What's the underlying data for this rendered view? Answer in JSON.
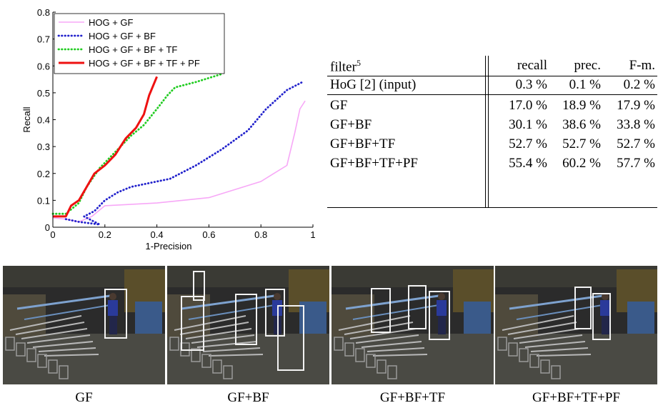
{
  "chart_data": {
    "type": "line",
    "xlabel": "1-Precision",
    "ylabel": "Recall",
    "xlim": [
      0,
      1
    ],
    "ylim": [
      0,
      0.8
    ],
    "xticks": [
      "0",
      "0.2",
      "0.4",
      "0.6",
      "0.8",
      "1"
    ],
    "yticks": [
      "0",
      "0.1",
      "0.2",
      "0.3",
      "0.4",
      "0.5",
      "0.6",
      "0.7",
      "0.8"
    ],
    "legend_position": "top-left",
    "series": [
      {
        "name": "HOG + GF",
        "color": "#f7a8f7",
        "style": "solid",
        "points": [
          [
            0.0,
            0.035
          ],
          [
            0.05,
            0.03
          ],
          [
            0.1,
            0.02
          ],
          [
            0.15,
            0.04
          ],
          [
            0.2,
            0.08
          ],
          [
            0.4,
            0.09
          ],
          [
            0.6,
            0.11
          ],
          [
            0.8,
            0.17
          ],
          [
            0.9,
            0.23
          ],
          [
            0.93,
            0.35
          ],
          [
            0.95,
            0.44
          ],
          [
            0.97,
            0.47
          ]
        ]
      },
      {
        "name": "HOG + GF + BF",
        "color": "#2222cc",
        "style": "dotted",
        "points": [
          [
            0.05,
            0.03
          ],
          [
            0.1,
            0.02
          ],
          [
            0.18,
            0.01
          ],
          [
            0.12,
            0.04
          ],
          [
            0.16,
            0.06
          ],
          [
            0.2,
            0.1
          ],
          [
            0.25,
            0.13
          ],
          [
            0.3,
            0.15
          ],
          [
            0.4,
            0.17
          ],
          [
            0.45,
            0.18
          ],
          [
            0.55,
            0.23
          ],
          [
            0.65,
            0.29
          ],
          [
            0.75,
            0.36
          ],
          [
            0.82,
            0.44
          ],
          [
            0.9,
            0.51
          ],
          [
            0.96,
            0.54
          ]
        ]
      },
      {
        "name": "HOG + GF + BF + TF",
        "color": "#22cc22",
        "style": "dotted",
        "points": [
          [
            0.0,
            0.05
          ],
          [
            0.05,
            0.05
          ],
          [
            0.1,
            0.09
          ],
          [
            0.13,
            0.15
          ],
          [
            0.18,
            0.22
          ],
          [
            0.25,
            0.29
          ],
          [
            0.3,
            0.34
          ],
          [
            0.35,
            0.38
          ],
          [
            0.4,
            0.44
          ],
          [
            0.44,
            0.49
          ],
          [
            0.47,
            0.52
          ],
          [
            0.55,
            0.54
          ],
          [
            0.65,
            0.57
          ]
        ]
      },
      {
        "name": "HOG + GF + BF + TF + PF",
        "color": "#ee1111",
        "style": "solid",
        "points": [
          [
            0.0,
            0.04
          ],
          [
            0.05,
            0.04
          ],
          [
            0.07,
            0.08
          ],
          [
            0.1,
            0.1
          ],
          [
            0.13,
            0.15
          ],
          [
            0.16,
            0.2
          ],
          [
            0.2,
            0.23
          ],
          [
            0.24,
            0.27
          ],
          [
            0.28,
            0.33
          ],
          [
            0.32,
            0.37
          ],
          [
            0.35,
            0.42
          ],
          [
            0.37,
            0.49
          ],
          [
            0.4,
            0.56
          ]
        ]
      }
    ]
  },
  "table": {
    "header": {
      "filter": "filter",
      "sup": "5",
      "recall": "recall",
      "prec": "prec.",
      "fm": "F-m."
    },
    "rows": [
      {
        "filter": "HoG [2] (input)",
        "recall": "0.3 %",
        "prec": "0.1 %",
        "fm": "0.2 %"
      },
      {
        "filter": "GF",
        "recall": "17.0 %",
        "prec": "18.9 %",
        "fm": "17.9 %"
      },
      {
        "filter": "GF+BF",
        "recall": "30.1 %",
        "prec": "38.6 %",
        "fm": "33.8 %"
      },
      {
        "filter": "GF+BF+TF",
        "recall": "52.7 %",
        "prec": "52.7 %",
        "fm": "52.7 %"
      },
      {
        "filter": "GF+BF+TF+PF",
        "recall": "55.4 %",
        "prec": "60.2 %",
        "fm": "57.7 %"
      }
    ]
  },
  "captions": [
    "GF",
    "GF+BF",
    "GF+BF+TF",
    "GF+BF+TF+PF"
  ]
}
